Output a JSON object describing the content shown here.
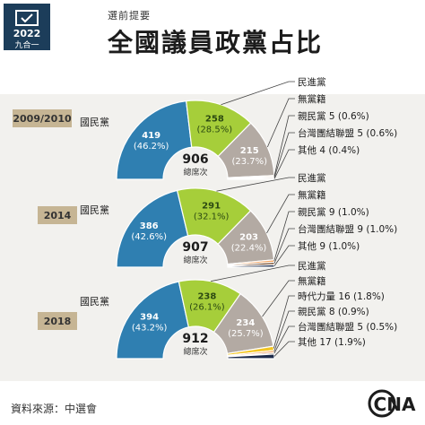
{
  "header": {
    "logo_year": "2022",
    "logo_text": "九合一",
    "subtitle": "選前提要",
    "title": "全國議員政黨占比"
  },
  "colors": {
    "kmt": "#2f7fb1",
    "dpp": "#a6ce3a",
    "independent": "#b3aaa3",
    "pfp": "#f4a460",
    "tsu": "#6b3f1f",
    "npp": "#f3c623",
    "other": "#1d2b4a",
    "year_badge": "#c6b594"
  },
  "footer": {
    "source": "資料來源：中選會",
    "brand": "CNA"
  },
  "chart_data": [
    {
      "type": "pie",
      "subtype": "semicircle",
      "year": "2009/2010",
      "total": "906",
      "total_label": "總席次",
      "series": [
        {
          "key": "kmt",
          "name": "國民黨",
          "value": 419,
          "label": "419",
          "pct": "(46.2%)"
        },
        {
          "key": "dpp",
          "name": "民進黨",
          "value": 258,
          "label": "258",
          "pct": "(28.5%)"
        },
        {
          "key": "independent",
          "name": "無黨籍",
          "value": 215,
          "label": "215",
          "pct": "(23.7%)"
        },
        {
          "key": "pfp",
          "name": "親民黨 5 (0.6%)",
          "value": 5
        },
        {
          "key": "tsu",
          "name": "台灣團結聯盟 5 (0.6%)",
          "value": 5
        },
        {
          "key": "other",
          "name": "其他 4 (0.4%)",
          "value": 4
        }
      ]
    },
    {
      "type": "pie",
      "subtype": "semicircle",
      "year": "2014",
      "total": "907",
      "total_label": "總席次",
      "series": [
        {
          "key": "kmt",
          "name": "國民黨",
          "value": 386,
          "label": "386",
          "pct": "(42.6%)"
        },
        {
          "key": "dpp",
          "name": "民進黨",
          "value": 291,
          "label": "291",
          "pct": "(32.1%)"
        },
        {
          "key": "independent",
          "name": "無黨籍",
          "value": 203,
          "label": "203",
          "pct": "(22.4%)"
        },
        {
          "key": "pfp",
          "name": "親民黨 9 (1.0%)",
          "value": 9
        },
        {
          "key": "tsu",
          "name": "台灣團結聯盟 9 (1.0%)",
          "value": 9
        },
        {
          "key": "other",
          "name": "其他 9 (1.0%)",
          "value": 9
        }
      ]
    },
    {
      "type": "pie",
      "subtype": "semicircle",
      "year": "2018",
      "total": "912",
      "total_label": "總席次",
      "series": [
        {
          "key": "kmt",
          "name": "國民黨",
          "value": 394,
          "label": "394",
          "pct": "(43.2%)"
        },
        {
          "key": "dpp",
          "name": "民進黨",
          "value": 238,
          "label": "238",
          "pct": "(26.1%)"
        },
        {
          "key": "independent",
          "name": "無黨籍",
          "value": 234,
          "label": "234",
          "pct": "(25.7%)"
        },
        {
          "key": "npp",
          "name": "時代力量 16 (1.8%)",
          "value": 16
        },
        {
          "key": "pfp",
          "name": "親民黨 8 (0.9%)",
          "value": 8
        },
        {
          "key": "tsu",
          "name": "台灣團結聯盟 5 (0.5%)",
          "value": 5
        },
        {
          "key": "other",
          "name": "其他 17 (1.9%)",
          "value": 17
        }
      ]
    }
  ]
}
